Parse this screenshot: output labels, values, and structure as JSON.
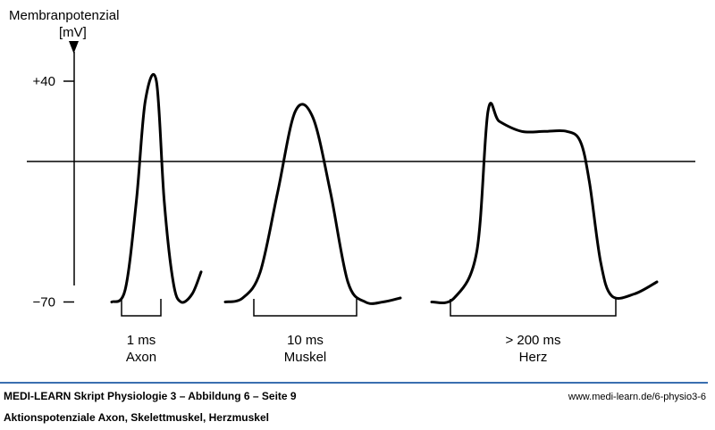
{
  "chart_data": {
    "type": "line",
    "ylabel": "Membranpotenzial",
    "yunit": "[mV]",
    "ytick_labels": [
      "+40",
      "−70"
    ],
    "yticks": [
      40,
      -70
    ],
    "zero_line": 0,
    "series": [
      {
        "duration": "1 ms",
        "name": "Axon",
        "x": [
          0,
          0.6,
          1.1,
          1.5,
          2.0,
          2.35,
          2.75,
          3.1,
          3.6,
          4.0
        ],
        "y": [
          -70,
          -64,
          -20,
          30,
          40,
          -20,
          -60,
          -70,
          -66,
          -55
        ]
      },
      {
        "duration": "10 ms",
        "name": "Muskel",
        "x": [
          0,
          1,
          2,
          3,
          4,
          5,
          6,
          7,
          8,
          9,
          10
        ],
        "y": [
          -70,
          -68,
          -55,
          -15,
          25,
          22,
          -15,
          -60,
          -70,
          -70,
          -68
        ]
      },
      {
        "duration": "> 200 ms",
        "name": "Herz",
        "x": [
          0,
          1,
          2,
          2.5,
          3,
          4,
          5,
          6,
          6.6,
          7,
          7.5,
          8,
          9,
          10
        ],
        "y": [
          -70,
          -68,
          -45,
          25,
          20,
          15,
          15,
          15,
          10,
          -10,
          -50,
          -67,
          -66,
          -60
        ]
      }
    ],
    "grid": false,
    "legend": "none"
  },
  "colors": {
    "line": "#000000",
    "footer_rule": "#3a6fb0"
  },
  "footer": {
    "title": "MEDI-LEARN Skript Physiologie 3 – Abbildung 6 – Seite 9",
    "url": "www.medi-learn.de/6-physio3-6",
    "subtitle": "Aktionspotenziale Axon, Skelettmuskel, Herzmuskel"
  }
}
